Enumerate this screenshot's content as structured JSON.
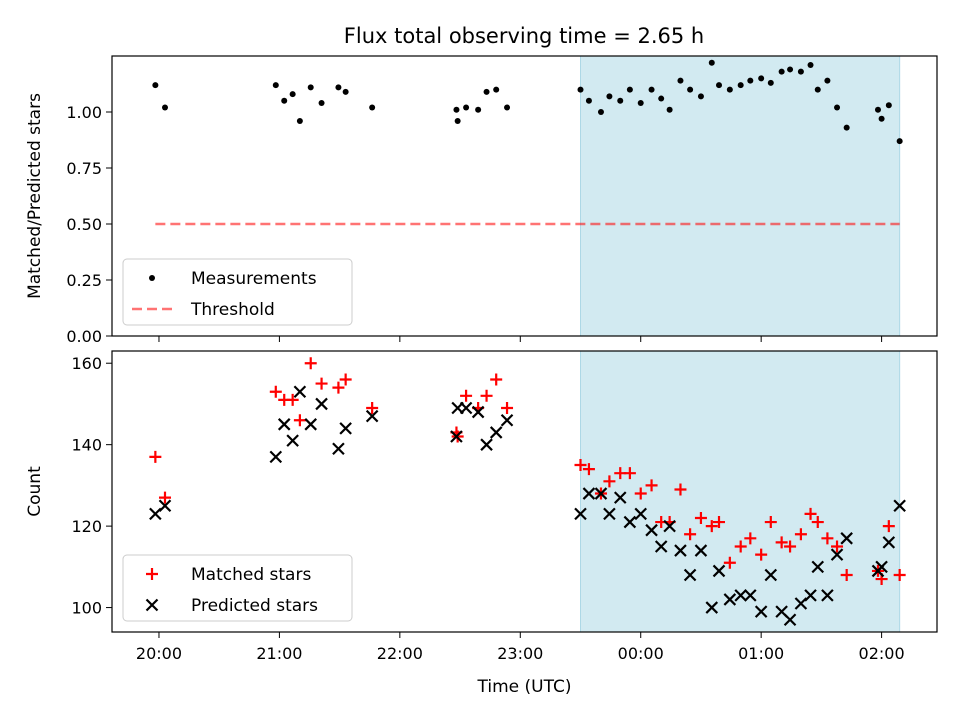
{
  "title": "Flux total observing time = 2.65 h",
  "colors": {
    "measurements": "#000000",
    "threshold": "#ff0000",
    "matched": "#ff0000",
    "predicted": "#000000",
    "shade": "#add8e6"
  },
  "chart_data": [
    {
      "type": "scatter",
      "ylabel": "Matched/Predicted stars",
      "ylim": [
        0,
        1.25
      ],
      "yticks": [
        0.0,
        0.25,
        0.5,
        0.75,
        1.0
      ],
      "ytick_labels": [
        "0.00",
        "0.25",
        "0.50",
        "0.75",
        "1.00"
      ],
      "x_units": "hours since 20:00 UTC",
      "xlim": [
        -0.39,
        6.46
      ],
      "shaded_x_range": [
        3.5,
        6.15
      ],
      "series": [
        {
          "name": "Measurements",
          "marker": "dot",
          "x": [
            -0.03,
            0.05,
            0.97,
            1.04,
            1.11,
            1.17,
            1.26,
            1.35,
            1.49,
            1.55,
            1.77,
            2.47,
            2.48,
            2.55,
            2.65,
            2.72,
            2.8,
            2.89,
            3.5,
            3.57,
            3.67,
            3.74,
            3.83,
            3.91,
            4.0,
            4.09,
            4.17,
            4.24,
            4.33,
            4.41,
            4.5,
            4.59,
            4.65,
            4.74,
            4.83,
            4.91,
            5.0,
            5.08,
            5.17,
            5.24,
            5.33,
            5.41,
            5.47,
            5.55,
            5.63,
            5.71,
            5.97,
            6.0,
            6.06,
            6.15
          ],
          "y": [
            1.12,
            1.02,
            1.12,
            1.05,
            1.08,
            0.96,
            1.11,
            1.04,
            1.11,
            1.09,
            1.02,
            1.01,
            0.96,
            1.02,
            1.01,
            1.09,
            1.1,
            1.02,
            1.1,
            1.05,
            1.0,
            1.07,
            1.05,
            1.1,
            1.04,
            1.1,
            1.06,
            1.01,
            1.14,
            1.1,
            1.07,
            1.22,
            1.12,
            1.1,
            1.12,
            1.14,
            1.15,
            1.13,
            1.18,
            1.19,
            1.18,
            1.21,
            1.1,
            1.14,
            1.02,
            0.93,
            1.01,
            0.97,
            1.03,
            0.87
          ]
        },
        {
          "name": "Threshold",
          "style": "dashed",
          "x": [
            -0.03,
            6.15
          ],
          "y": [
            0.5,
            0.5
          ]
        }
      ],
      "legend": [
        "Measurements",
        "Threshold"
      ],
      "legend_position": "lower-left"
    },
    {
      "type": "scatter",
      "ylabel": "Count",
      "xlabel": "Time (UTC)",
      "ylim": [
        94,
        163
      ],
      "yticks": [
        100,
        120,
        140,
        160
      ],
      "ytick_labels": [
        "100",
        "120",
        "140",
        "160"
      ],
      "xticks": [
        0,
        1,
        2,
        3,
        4,
        5,
        6
      ],
      "xtick_labels": [
        "20:00",
        "21:00",
        "22:00",
        "23:00",
        "00:00",
        "01:00",
        "02:00"
      ],
      "x_units": "hours since 20:00 UTC",
      "xlim": [
        -0.39,
        6.46
      ],
      "shaded_x_range": [
        3.5,
        6.15
      ],
      "series": [
        {
          "name": "Matched stars",
          "marker": "plus",
          "x": [
            -0.03,
            0.05,
            0.97,
            1.04,
            1.11,
            1.17,
            1.26,
            1.35,
            1.49,
            1.55,
            1.77,
            2.47,
            2.48,
            2.55,
            2.65,
            2.72,
            2.8,
            2.89,
            3.5,
            3.57,
            3.67,
            3.74,
            3.83,
            3.91,
            4.0,
            4.09,
            4.17,
            4.24,
            4.33,
            4.41,
            4.5,
            4.59,
            4.65,
            4.74,
            4.83,
            4.91,
            5.0,
            5.08,
            5.17,
            5.24,
            5.33,
            5.41,
            5.47,
            5.55,
            5.63,
            5.71,
            5.97,
            6.0,
            6.06,
            6.15
          ],
          "y": [
            137,
            127,
            153,
            151,
            151,
            146,
            160,
            155,
            154,
            156,
            149,
            143,
            142,
            152,
            149,
            152,
            156,
            149,
            135,
            134,
            128,
            131,
            133,
            133,
            128,
            130,
            121,
            121,
            129,
            118,
            122,
            120,
            121,
            111,
            115,
            117,
            113,
            121,
            116,
            115,
            118,
            123,
            121,
            117,
            115,
            108,
            109,
            107,
            120,
            108
          ]
        },
        {
          "name": "Predicted stars",
          "marker": "x",
          "x": [
            -0.03,
            0.05,
            0.97,
            1.04,
            1.11,
            1.17,
            1.26,
            1.35,
            1.49,
            1.55,
            1.77,
            2.47,
            2.48,
            2.55,
            2.65,
            2.72,
            2.8,
            2.89,
            3.5,
            3.57,
            3.67,
            3.74,
            3.83,
            3.91,
            4.0,
            4.09,
            4.17,
            4.24,
            4.33,
            4.41,
            4.5,
            4.59,
            4.65,
            4.74,
            4.83,
            4.91,
            5.0,
            5.08,
            5.17,
            5.24,
            5.33,
            5.41,
            5.47,
            5.55,
            5.63,
            5.71,
            5.97,
            6.0,
            6.06,
            6.15
          ],
          "y": [
            123,
            125,
            137,
            145,
            141,
            153,
            145,
            150,
            139,
            144,
            147,
            142,
            149,
            149,
            148,
            140,
            143,
            146,
            123,
            128,
            128,
            123,
            127,
            121,
            123,
            119,
            115,
            120,
            114,
            108,
            114,
            100,
            109,
            102,
            103,
            103,
            99,
            108,
            99,
            97,
            101,
            103,
            110,
            103,
            113,
            117,
            109,
            110,
            116,
            125
          ]
        }
      ],
      "legend": [
        "Matched stars",
        "Predicted stars"
      ],
      "legend_position": "lower-left"
    }
  ]
}
